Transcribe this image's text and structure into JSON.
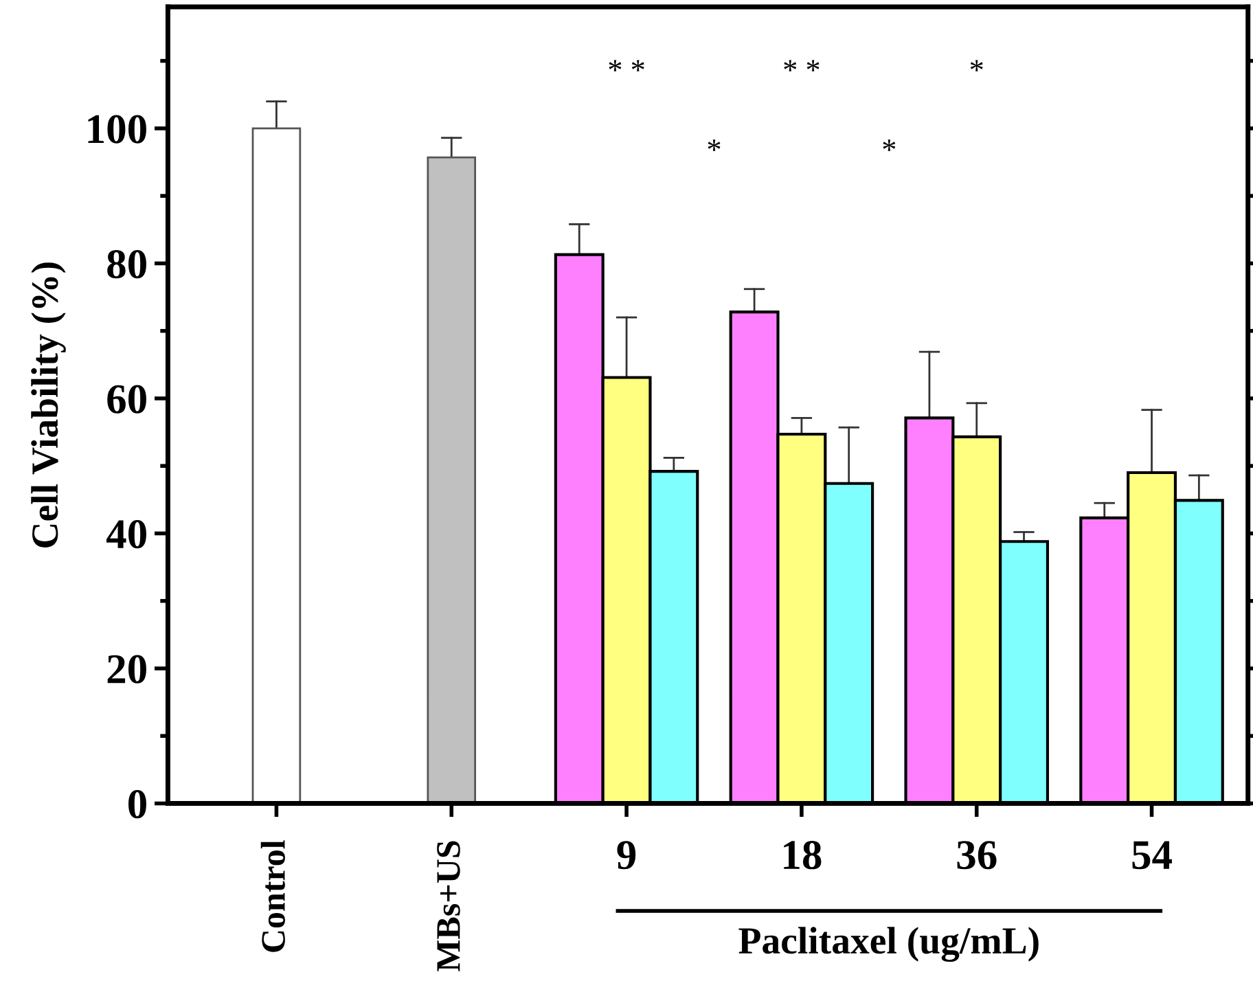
{
  "chart_data": {
    "type": "bar",
    "ylabel": "Cell Viability (%)",
    "xlabel": "Paclitaxel (ug/mL)",
    "categories": [
      "Control",
      "MBs+US",
      "9",
      "18",
      "36",
      "54"
    ],
    "series": [
      {
        "colors": [
          "#ffffff",
          "#c0c0c0",
          "#ff80ff",
          "#ff80ff",
          "#ff80ff",
          "#ff80ff"
        ],
        "values": [
          100,
          95.7,
          81.3,
          72.8,
          57.1,
          42.3
        ],
        "errors": [
          [
            100,
            104
          ],
          [
            95.7,
            98.6
          ],
          [
            81.3,
            85.8
          ],
          [
            72.8,
            76.2
          ],
          [
            57.1,
            66.9
          ],
          [
            42.3,
            44.5
          ]
        ]
      },
      {
        "color": "#ffff80",
        "values": [
          null,
          null,
          63.1,
          54.7,
          54.3,
          49.0
        ],
        "errors": [
          null,
          null,
          [
            63.1,
            72.0
          ],
          [
            54.7,
            57.1
          ],
          [
            54.3,
            59.3
          ],
          [
            49.0,
            58.3
          ]
        ]
      },
      {
        "color": "#80ffff",
        "values": [
          null,
          null,
          49.2,
          47.4,
          38.8,
          44.9
        ],
        "errors": [
          null,
          null,
          [
            49.2,
            51.2
          ],
          [
            47.4,
            55.7
          ],
          [
            38.8,
            40.2
          ],
          [
            44.9,
            48.6
          ]
        ]
      }
    ],
    "ylim": [
      0,
      118
    ],
    "yticks": [
      0,
      20,
      40,
      60,
      80,
      100
    ],
    "grid": false,
    "legend": false,
    "annotations": [
      "* *",
      "*",
      "* *",
      "*",
      "*"
    ]
  }
}
